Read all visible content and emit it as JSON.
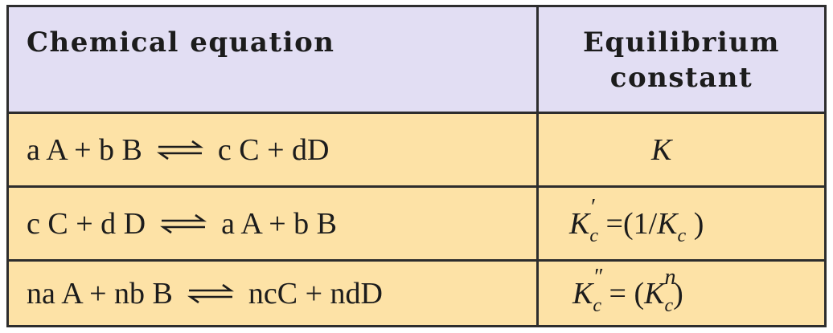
{
  "header": {
    "col1": "Chemical equation",
    "col2_line1": "Equilibrium",
    "col2_line2": "constant"
  },
  "rows": [
    {
      "left": "a A + b B",
      "right": "c C + dD",
      "k_symbol": "K",
      "k_subscript": "",
      "k_prime": "",
      "k_rhs": ""
    },
    {
      "left": "c C + d D",
      "right": "a A + b B",
      "k_symbol": "K",
      "k_prime": "′",
      "k_subscript": "c",
      "k_rhs_open": " =(1/",
      "k_rhs_symbol": "K",
      "k_rhs_subscript": "c",
      "k_rhs_close": " )"
    },
    {
      "left": "na A + nb B",
      "right": "ncC + ndD",
      "k_symbol": "K",
      "k_prime": "″",
      "k_subscript": "c",
      "k_rhs_open": " = (",
      "k_rhs_symbol": "K",
      "k_rhs_superscript": "n",
      "k_rhs_subscript": "c",
      "k_rhs_close": ")"
    }
  ],
  "icons": {
    "equilibrium_arrow": "equilibrium-arrow-icon"
  },
  "colors": {
    "header_bg": "#e2def3",
    "row_bg": "#fde2a6",
    "border": "#2d2d2d"
  }
}
